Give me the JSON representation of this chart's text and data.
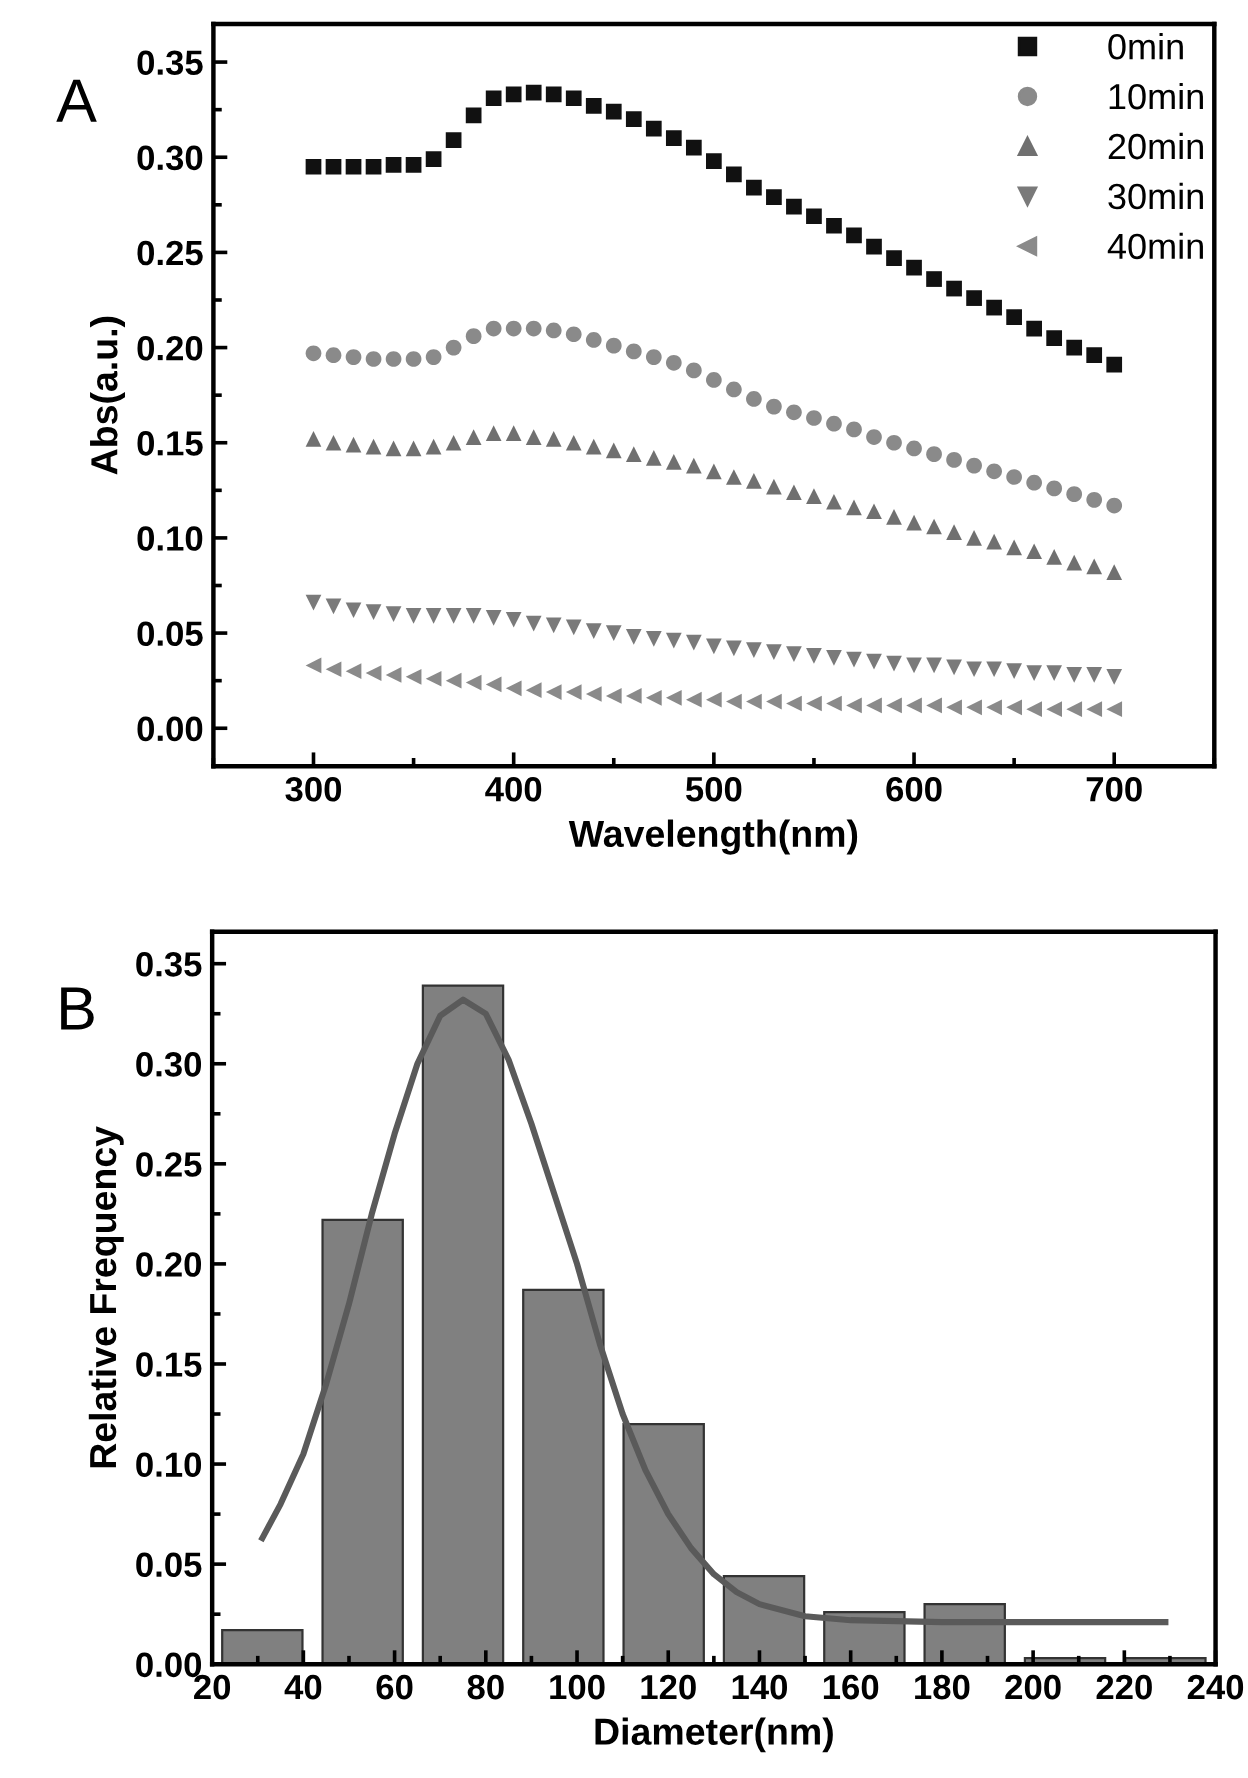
{
  "chart_data": [
    {
      "type": "scatter",
      "xlabel": "Wavelength(nm)",
      "ylabel": "Abs(a.u.)",
      "x": [
        300,
        310,
        320,
        330,
        340,
        350,
        360,
        370,
        380,
        390,
        400,
        410,
        420,
        430,
        440,
        450,
        460,
        470,
        480,
        490,
        500,
        510,
        520,
        530,
        540,
        550,
        560,
        570,
        580,
        590,
        600,
        610,
        620,
        630,
        640,
        650,
        660,
        670,
        680,
        690,
        700
      ],
      "series": [
        {
          "name": "0min",
          "color": "#111111",
          "marker": "square",
          "values": [
            0.295,
            0.295,
            0.295,
            0.295,
            0.296,
            0.296,
            0.299,
            0.309,
            0.322,
            0.331,
            0.333,
            0.334,
            0.333,
            0.331,
            0.327,
            0.324,
            0.32,
            0.315,
            0.31,
            0.305,
            0.298,
            0.291,
            0.284,
            0.279,
            0.274,
            0.269,
            0.264,
            0.259,
            0.253,
            0.247,
            0.242,
            0.236,
            0.231,
            0.226,
            0.221,
            0.216,
            0.21,
            0.205,
            0.2,
            0.196,
            0.191
          ]
        },
        {
          "name": "10min",
          "color": "#8a8a8a",
          "marker": "circle",
          "values": [
            0.197,
            0.196,
            0.195,
            0.194,
            0.194,
            0.194,
            0.195,
            0.2,
            0.206,
            0.21,
            0.21,
            0.21,
            0.209,
            0.207,
            0.204,
            0.201,
            0.198,
            0.195,
            0.192,
            0.188,
            0.183,
            0.178,
            0.173,
            0.169,
            0.166,
            0.163,
            0.16,
            0.157,
            0.153,
            0.15,
            0.147,
            0.144,
            0.141,
            0.138,
            0.135,
            0.132,
            0.129,
            0.126,
            0.123,
            0.12,
            0.117
          ]
        },
        {
          "name": "20min",
          "color": "#707070",
          "marker": "triangle",
          "values": [
            0.152,
            0.15,
            0.149,
            0.148,
            0.147,
            0.147,
            0.148,
            0.15,
            0.153,
            0.155,
            0.155,
            0.153,
            0.152,
            0.15,
            0.148,
            0.146,
            0.144,
            0.142,
            0.14,
            0.138,
            0.135,
            0.132,
            0.13,
            0.127,
            0.124,
            0.122,
            0.119,
            0.116,
            0.114,
            0.111,
            0.108,
            0.106,
            0.103,
            0.1,
            0.098,
            0.095,
            0.093,
            0.09,
            0.087,
            0.085,
            0.082
          ]
        },
        {
          "name": "30min",
          "color": "#7a7a7a",
          "marker": "triangle_down",
          "values": [
            0.066,
            0.064,
            0.062,
            0.061,
            0.06,
            0.059,
            0.059,
            0.059,
            0.059,
            0.058,
            0.057,
            0.055,
            0.054,
            0.053,
            0.051,
            0.05,
            0.048,
            0.047,
            0.046,
            0.045,
            0.043,
            0.042,
            0.041,
            0.04,
            0.039,
            0.038,
            0.037,
            0.036,
            0.035,
            0.034,
            0.033,
            0.033,
            0.032,
            0.031,
            0.031,
            0.03,
            0.029,
            0.029,
            0.028,
            0.028,
            0.027
          ]
        },
        {
          "name": "40min",
          "color": "#8a8a8a",
          "marker": "triangle_left",
          "values": [
            0.033,
            0.031,
            0.03,
            0.029,
            0.028,
            0.027,
            0.026,
            0.025,
            0.024,
            0.023,
            0.021,
            0.02,
            0.019,
            0.019,
            0.018,
            0.017,
            0.017,
            0.016,
            0.016,
            0.015,
            0.015,
            0.014,
            0.014,
            0.014,
            0.013,
            0.013,
            0.013,
            0.012,
            0.012,
            0.012,
            0.012,
            0.012,
            0.011,
            0.011,
            0.011,
            0.011,
            0.01,
            0.01,
            0.01,
            0.01,
            0.01
          ]
        }
      ],
      "xlim": [
        250,
        750
      ],
      "xticks": [
        300,
        400,
        500,
        600,
        700
      ],
      "ylim": [
        -0.02,
        0.37
      ],
      "yticks": [
        {
          "value": 0,
          "label": "0.00"
        },
        {
          "value": 0.05,
          "label": "0.05"
        },
        {
          "value": 0.1,
          "label": "0.10"
        },
        {
          "value": 0.15,
          "label": "0.15"
        },
        {
          "value": 0.2,
          "label": "0.20"
        },
        {
          "value": 0.25,
          "label": "0.25"
        },
        {
          "value": 0.3,
          "label": "0.30"
        },
        {
          "value": 0.35,
          "label": "0.35"
        }
      ],
      "legend": "top right",
      "grid": false,
      "annotations": [
        "A"
      ]
    },
    {
      "type": "histogram",
      "xlabel": "Diameter(nm)",
      "ylabel": "Relative Frequency",
      "bins": [
        20,
        42,
        64,
        86,
        108,
        130,
        152,
        174,
        196,
        218,
        240
      ],
      "values": [
        0.017,
        0.222,
        0.339,
        0.187,
        0.12,
        0.044,
        0.026,
        0.03,
        0.003,
        0.003
      ],
      "color": "#808080",
      "series": [
        {
          "type": "line",
          "color": "#5a5a5a",
          "x": [
            31,
            35,
            40,
            45,
            50,
            55,
            60,
            65,
            70,
            75,
            80,
            85,
            90,
            95,
            100,
            105,
            110,
            115,
            120,
            125,
            130,
            135,
            140,
            150,
            160,
            180,
            229
          ],
          "values": [
            0.063,
            0.08,
            0.105,
            0.14,
            0.18,
            0.225,
            0.265,
            0.3,
            0.324,
            0.332,
            0.325,
            0.302,
            0.27,
            0.235,
            0.2,
            0.16,
            0.125,
            0.097,
            0.075,
            0.058,
            0.045,
            0.036,
            0.03,
            0.024,
            0.022,
            0.021,
            0.021
          ]
        }
      ],
      "xlim": [
        20,
        240
      ],
      "xticks": [
        20,
        40,
        60,
        80,
        100,
        120,
        140,
        160,
        180,
        200,
        220,
        240
      ],
      "ylim": [
        0,
        0.366
      ],
      "yticks": [
        {
          "value": 0,
          "label": "0.00"
        },
        {
          "value": 0.05,
          "label": "0.05"
        },
        {
          "value": 0.1,
          "label": "0.10"
        },
        {
          "value": 0.15,
          "label": "0.15"
        },
        {
          "value": 0.2,
          "label": "0.20"
        },
        {
          "value": 0.25,
          "label": "0.25"
        },
        {
          "value": 0.3,
          "label": "0.30"
        },
        {
          "value": 0.35,
          "label": "0.35"
        }
      ],
      "grid": false,
      "annotations": [
        "B"
      ]
    }
  ]
}
